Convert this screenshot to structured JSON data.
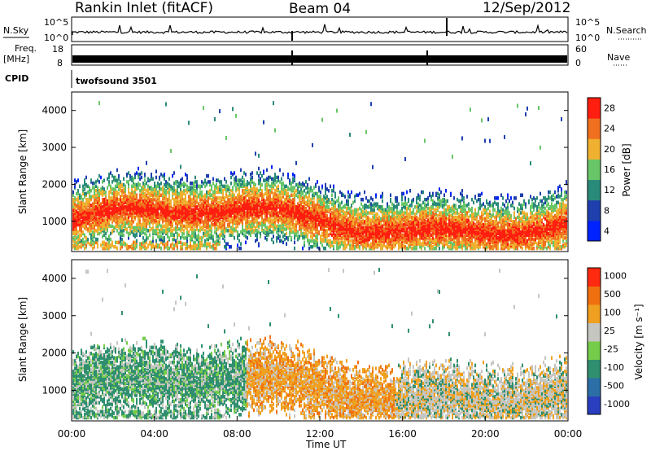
{
  "header": {
    "station": "Rankin Inlet (fitACF)",
    "beam": "Beam 04",
    "date": "12/Sep/2012"
  },
  "panels": {
    "nsky_label": "N.Sky",
    "nsearch_label": "N.Search",
    "freq_label_top": "Freq.",
    "freq_label_unit": "[MHz]",
    "nave_label": "Nave",
    "cpid_label": "CPID",
    "cpid_value": "twofsound 3501",
    "noise_left_ticks": [
      "10^5",
      "10^0"
    ],
    "noise_right_ticks": [
      "10^5",
      "10^0"
    ],
    "freq_left_ticks": [
      "18",
      "8"
    ],
    "freq_right_ticks": [
      "60",
      "0"
    ]
  },
  "chart_data": [
    {
      "type": "heatmap",
      "name": "power",
      "ylabel": "Slant Range [km]",
      "xlabel": "Time UT",
      "yticks": [
        1000,
        2000,
        3000,
        4000
      ],
      "ylim": [
        180,
        4500
      ],
      "xlim": [
        0,
        24
      ],
      "colorbar_label": "Power [dB]",
      "colorbar_ticks": [
        "28",
        "24",
        "20",
        "16",
        "12",
        "8",
        "4"
      ],
      "colors": [
        "#0022ff",
        "#1f3fae",
        "#2a8a7a",
        "#68c668",
        "#f0b030",
        "#f07020",
        "#ff1e10"
      ]
    },
    {
      "type": "heatmap",
      "name": "velocity",
      "ylabel": "Slant Range [km]",
      "xlabel": "Time UT",
      "yticks": [
        1000,
        2000,
        3000,
        4000
      ],
      "ylim": [
        180,
        4500
      ],
      "xlim": [
        0,
        24
      ],
      "xticks": [
        "00:00",
        "04:00",
        "08:00",
        "12:00",
        "16:00",
        "20:00",
        "00:00"
      ],
      "colorbar_label": "Velocity [m s⁻¹]",
      "colorbar_ticks": [
        "1000",
        "500",
        "100",
        "25",
        "-25",
        "-100",
        "-500",
        "-1000"
      ],
      "colors": [
        "#2a3fc0",
        "#2c6fa6",
        "#2f8f6f",
        "#74cc4a",
        "#c6c6c0",
        "#f0a020",
        "#f07010",
        "#ff2a10"
      ]
    }
  ]
}
